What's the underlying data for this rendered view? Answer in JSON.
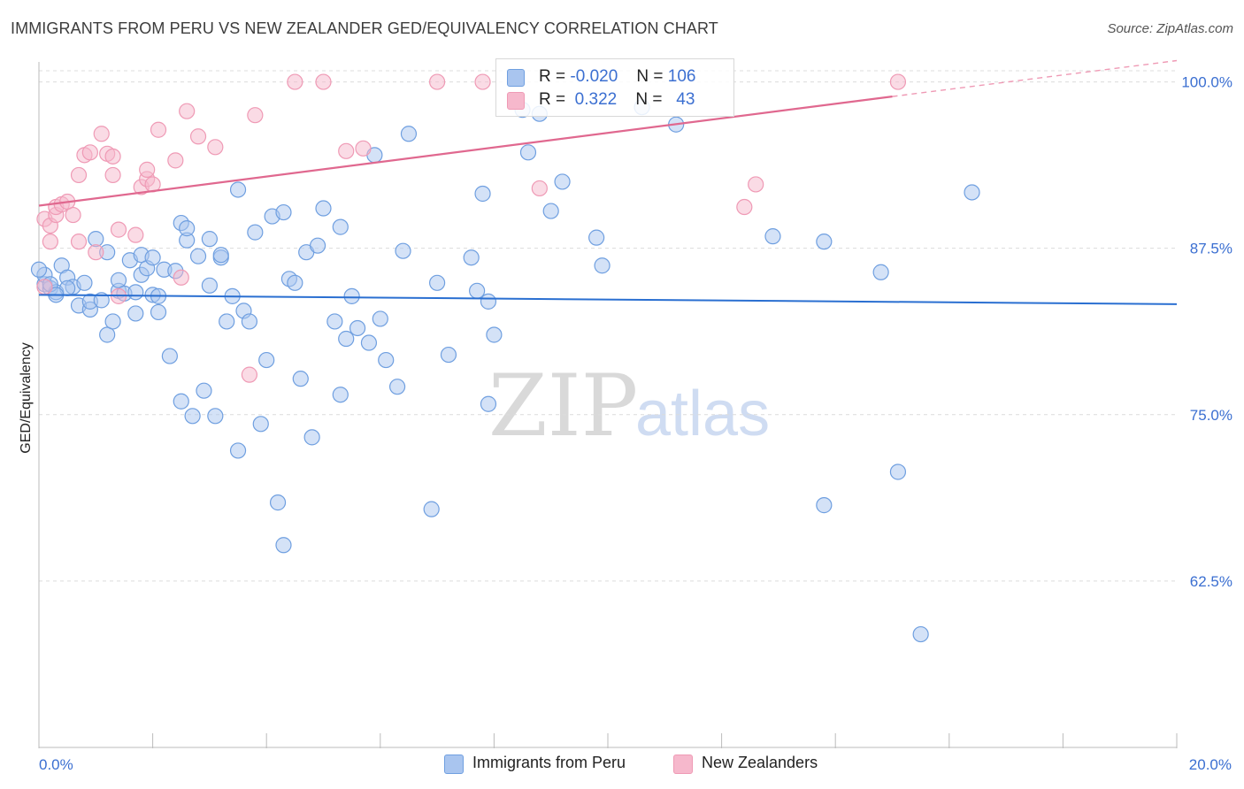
{
  "title": "IMMIGRANTS FROM PERU VS NEW ZEALANDER GED/EQUIVALENCY CORRELATION CHART",
  "source": "Source: ZipAtlas.com",
  "watermark": {
    "zip": "ZIP",
    "atlas": "atlas"
  },
  "legend_stats": [
    {
      "r_label": "R =",
      "r_value": "-0.020",
      "n_label": "N =",
      "n_value": "106",
      "color": "#a9c5ef"
    },
    {
      "r_label": "R =",
      "r_value": "0.322",
      "n_label": "N =",
      "n_value": "43",
      "color": "#f6b8cc"
    }
  ],
  "chart_data": {
    "type": "scatter",
    "title": "IMMIGRANTS FROM PERU VS NEW ZEALANDER GED/EQUIVALENCY CORRELATION CHART",
    "xlabel": "",
    "ylabel": "GED/Equivalency",
    "xlim": [
      0,
      20
    ],
    "ylim": [
      50,
      101.5
    ],
    "x_tick_labels": [
      "0.0%",
      "20.0%"
    ],
    "y_ticks": [
      62.5,
      75.0,
      87.5,
      100.0
    ],
    "y_tick_labels": [
      "62.5%",
      "75.0%",
      "87.5%",
      "100.0%"
    ],
    "grid": true,
    "legend_position": "bottom",
    "series": [
      {
        "name": "Immigrants from Peru",
        "color": "#6f9fe0",
        "fill": "#a9c5ef",
        "trend": {
          "x": [
            0,
            20
          ],
          "y": [
            84.0,
            83.3
          ]
        },
        "points": [
          [
            0.1,
            84.8
          ],
          [
            0.1,
            85.5
          ],
          [
            0.2,
            84.5
          ],
          [
            0.3,
            84.2
          ],
          [
            0.4,
            86.2
          ],
          [
            0.5,
            85.3
          ],
          [
            0.6,
            84.6
          ],
          [
            0.7,
            83.2
          ],
          [
            0.8,
            84.9
          ],
          [
            0.9,
            82.9
          ],
          [
            0.9,
            83.5
          ],
          [
            1.0,
            88.2
          ],
          [
            1.1,
            83.6
          ],
          [
            1.2,
            87.2
          ],
          [
            1.2,
            81.0
          ],
          [
            1.3,
            82.0
          ],
          [
            1.4,
            84.3
          ],
          [
            1.4,
            85.1
          ],
          [
            1.5,
            84.1
          ],
          [
            1.6,
            86.6
          ],
          [
            1.7,
            84.2
          ],
          [
            1.7,
            82.6
          ],
          [
            1.8,
            85.5
          ],
          [
            1.8,
            87.0
          ],
          [
            1.9,
            86.0
          ],
          [
            2.0,
            84.0
          ],
          [
            2.0,
            86.8
          ],
          [
            2.1,
            83.9
          ],
          [
            2.1,
            82.7
          ],
          [
            2.2,
            85.9
          ],
          [
            2.3,
            79.4
          ],
          [
            2.4,
            85.8
          ],
          [
            2.5,
            76.0
          ],
          [
            2.5,
            89.4
          ],
          [
            2.6,
            88.1
          ],
          [
            2.6,
            89.0
          ],
          [
            2.7,
            74.9
          ],
          [
            2.8,
            86.9
          ],
          [
            2.9,
            76.8
          ],
          [
            3.0,
            84.7
          ],
          [
            3.0,
            88.2
          ],
          [
            3.1,
            74.9
          ],
          [
            3.2,
            86.8
          ],
          [
            3.2,
            87.0
          ],
          [
            3.3,
            82.0
          ],
          [
            3.4,
            83.9
          ],
          [
            3.5,
            91.9
          ],
          [
            3.5,
            72.3
          ],
          [
            3.6,
            82.8
          ],
          [
            3.7,
            82.0
          ],
          [
            3.8,
            88.7
          ],
          [
            3.9,
            74.3
          ],
          [
            4.0,
            79.1
          ],
          [
            4.1,
            89.9
          ],
          [
            4.2,
            68.4
          ],
          [
            4.3,
            90.2
          ],
          [
            4.3,
            65.2
          ],
          [
            4.4,
            85.2
          ],
          [
            4.5,
            84.9
          ],
          [
            4.6,
            77.7
          ],
          [
            4.7,
            87.2
          ],
          [
            4.8,
            73.3
          ],
          [
            4.9,
            87.7
          ],
          [
            5.0,
            90.5
          ],
          [
            5.2,
            82.0
          ],
          [
            5.3,
            89.1
          ],
          [
            5.3,
            76.5
          ],
          [
            5.4,
            80.7
          ],
          [
            5.5,
            83.9
          ],
          [
            5.6,
            81.5
          ],
          [
            5.8,
            80.4
          ],
          [
            5.9,
            94.5
          ],
          [
            6.0,
            82.2
          ],
          [
            6.1,
            79.1
          ],
          [
            6.3,
            77.1
          ],
          [
            6.4,
            87.3
          ],
          [
            6.5,
            96.1
          ],
          [
            6.9,
            67.9
          ],
          [
            7.0,
            84.9
          ],
          [
            7.2,
            79.5
          ],
          [
            7.6,
            86.8
          ],
          [
            7.7,
            84.3
          ],
          [
            7.8,
            91.6
          ],
          [
            7.9,
            83.5
          ],
          [
            7.9,
            75.8
          ],
          [
            8.0,
            81.0
          ],
          [
            8.5,
            97.9
          ],
          [
            8.6,
            94.7
          ],
          [
            8.8,
            97.6
          ],
          [
            9.0,
            90.3
          ],
          [
            9.2,
            92.5
          ],
          [
            9.8,
            88.3
          ],
          [
            9.9,
            86.2
          ],
          [
            10.6,
            98.1
          ],
          [
            11.2,
            96.8
          ],
          [
            12.9,
            88.4
          ],
          [
            13.8,
            88.0
          ],
          [
            13.8,
            68.2
          ],
          [
            14.8,
            85.7
          ],
          [
            15.1,
            70.7
          ],
          [
            15.5,
            58.5
          ],
          [
            16.4,
            91.7
          ],
          [
            0.0,
            85.9
          ],
          [
            0.2,
            84.8
          ],
          [
            0.5,
            84.5
          ],
          [
            0.3,
            84.0
          ]
        ]
      },
      {
        "name": "New Zealanders",
        "color": "#ef9ab5",
        "fill": "#f6b8cc",
        "trend": {
          "x": [
            0,
            15
          ],
          "y": [
            90.7,
            98.9
          ]
        },
        "trend_dashed": {
          "x": [
            15,
            20
          ],
          "y": [
            98.9,
            101.6
          ]
        },
        "points": [
          [
            0.1,
            84.6
          ],
          [
            0.1,
            89.7
          ],
          [
            0.2,
            89.2
          ],
          [
            0.2,
            88.0
          ],
          [
            0.3,
            90.0
          ],
          [
            0.3,
            90.6
          ],
          [
            0.4,
            90.8
          ],
          [
            0.5,
            91.0
          ],
          [
            0.6,
            90.0
          ],
          [
            0.7,
            88.0
          ],
          [
            0.7,
            93.0
          ],
          [
            0.8,
            94.5
          ],
          [
            0.9,
            94.7
          ],
          [
            1.0,
            87.2
          ],
          [
            1.1,
            96.1
          ],
          [
            1.2,
            94.6
          ],
          [
            1.3,
            93.0
          ],
          [
            1.3,
            94.4
          ],
          [
            1.4,
            83.9
          ],
          [
            1.4,
            88.9
          ],
          [
            1.7,
            88.5
          ],
          [
            1.8,
            92.1
          ],
          [
            1.9,
            92.7
          ],
          [
            1.9,
            93.4
          ],
          [
            2.0,
            92.3
          ],
          [
            2.1,
            96.4
          ],
          [
            2.4,
            94.1
          ],
          [
            2.5,
            85.3
          ],
          [
            2.6,
            97.8
          ],
          [
            2.8,
            95.9
          ],
          [
            3.1,
            95.1
          ],
          [
            3.7,
            78.0
          ],
          [
            3.8,
            97.5
          ],
          [
            4.5,
            100.0
          ],
          [
            5.0,
            100.0
          ],
          [
            5.4,
            94.8
          ],
          [
            5.7,
            95.0
          ],
          [
            7.0,
            100.0
          ],
          [
            7.8,
            100.0
          ],
          [
            8.8,
            92.0
          ],
          [
            12.4,
            90.6
          ],
          [
            12.6,
            92.3
          ],
          [
            15.1,
            100.0
          ]
        ]
      }
    ]
  }
}
